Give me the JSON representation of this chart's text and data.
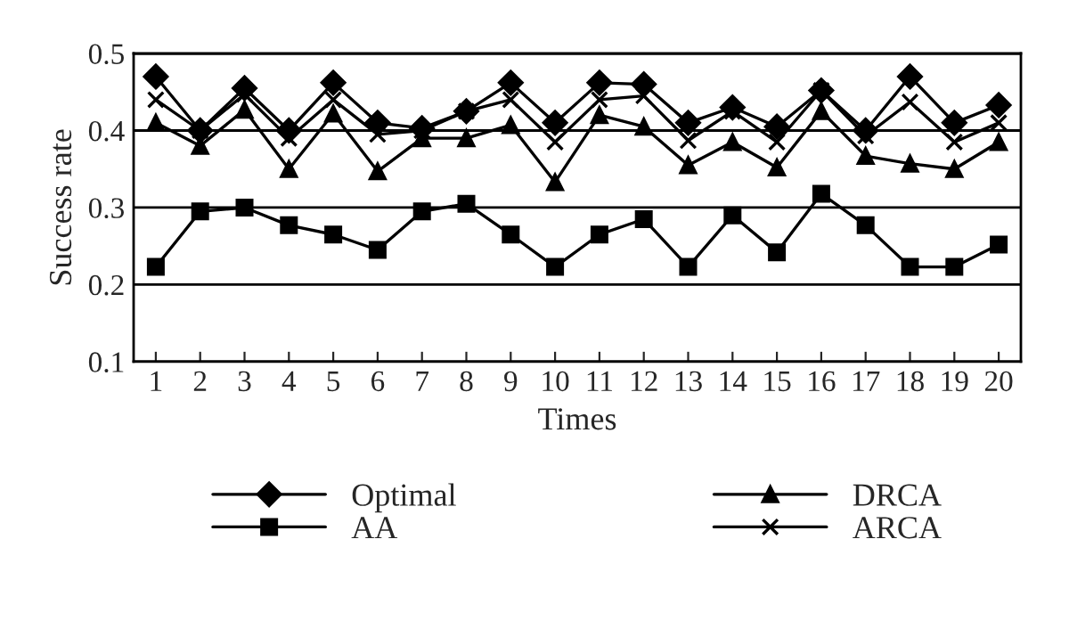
{
  "chart_data": {
    "type": "line",
    "xlabel": "Times",
    "ylabel": "Success rate",
    "categories": [
      "1",
      "2",
      "3",
      "4",
      "5",
      "6",
      "7",
      "8",
      "9",
      "10",
      "11",
      "12",
      "13",
      "14",
      "15",
      "16",
      "17",
      "18",
      "19",
      "20"
    ],
    "series": [
      {
        "name": "Optimal",
        "color": "#000000",
        "marker": "diamond",
        "values": [
          0.47,
          0.4,
          0.455,
          0.4,
          0.462,
          0.41,
          0.403,
          0.425,
          0.462,
          0.41,
          0.462,
          0.46,
          0.41,
          0.43,
          0.405,
          0.452,
          0.4,
          0.47,
          0.41,
          0.433
        ]
      },
      {
        "name": "AA",
        "color": "#000000",
        "marker": "square",
        "values": [
          0.223,
          0.295,
          0.3,
          0.277,
          0.265,
          0.245,
          0.295,
          0.305,
          0.265,
          0.223,
          0.265,
          0.285,
          0.223,
          0.29,
          0.242,
          0.318,
          0.277,
          0.223,
          0.223,
          0.252
        ]
      },
      {
        "name": "DRCA",
        "color": "#000000",
        "marker": "triangle",
        "values": [
          0.41,
          0.38,
          0.427,
          0.35,
          0.422,
          0.347,
          0.39,
          0.39,
          0.407,
          0.333,
          0.42,
          0.405,
          0.355,
          0.385,
          0.352,
          0.425,
          0.367,
          0.357,
          0.35,
          0.385
        ]
      },
      {
        "name": "ARCA",
        "color": "#000000",
        "marker": "cross",
        "values": [
          0.44,
          0.4,
          0.447,
          0.39,
          0.44,
          0.395,
          0.4,
          0.425,
          0.44,
          0.385,
          0.44,
          0.445,
          0.387,
          0.425,
          0.385,
          0.452,
          0.393,
          0.437,
          0.385,
          0.41
        ]
      }
    ],
    "ylim": [
      0.1,
      0.5
    ],
    "yticks": [
      0.1,
      0.2,
      0.3,
      0.4,
      0.5
    ],
    "grid": "y",
    "legend": "bottom",
    "line_style": "solid"
  }
}
